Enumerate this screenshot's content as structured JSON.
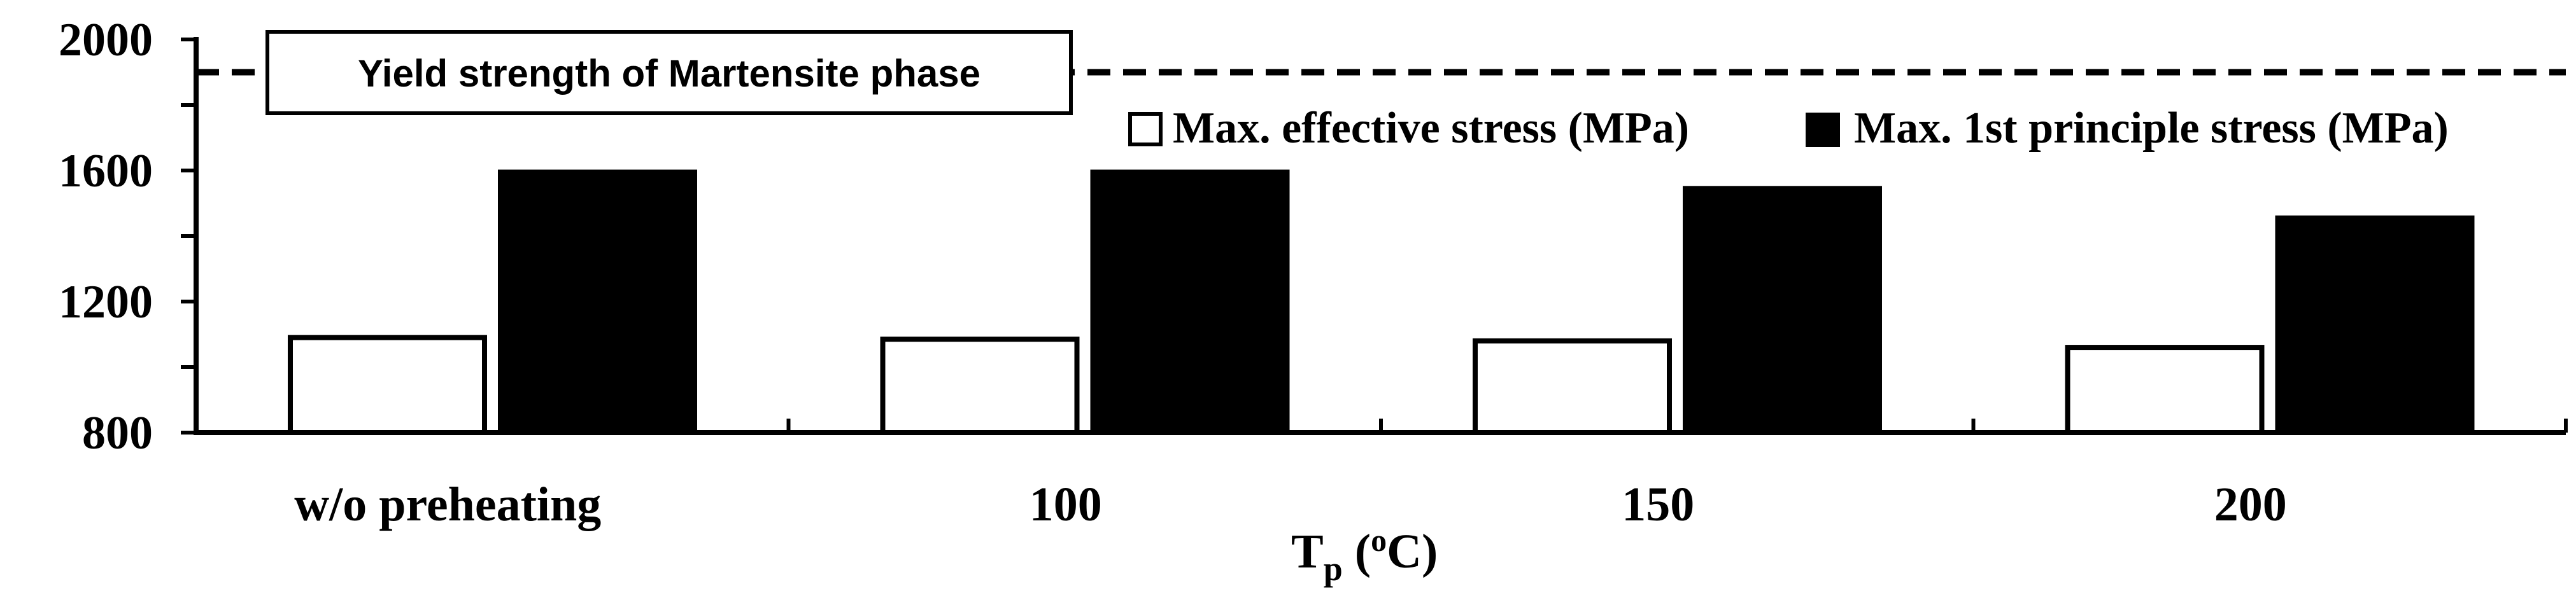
{
  "chart_data": {
    "type": "bar",
    "title": "",
    "xlabel": "T",
    "xlabel_sub": "p",
    "xlabel_unit": "(oC)",
    "xlabel_sup": "o",
    "xlabel_unit_text": "C)",
    "xlabel_open": "(",
    "ylabel": "",
    "ylim": [
      800,
      2000
    ],
    "yticks": [
      800,
      1200,
      1600,
      2000
    ],
    "ytick_labels": [
      "800",
      "1200",
      "1600",
      "2000"
    ],
    "categories": [
      "w/o preheating",
      "100",
      "150",
      "200"
    ],
    "series": [
      {
        "name": "Max. effective stress (MPa)",
        "fill": "#ffffff",
        "values": [
          1090,
          1085,
          1080,
          1060
        ]
      },
      {
        "name": "Max. 1st principle stress (MPa)",
        "fill": "#000000",
        "values": [
          1595,
          1595,
          1545,
          1455
        ]
      }
    ],
    "reference_line": {
      "label": "Yield strength of Martensite phase",
      "value": 1900,
      "style": "dashed"
    },
    "legend_position": "top-right",
    "grid": false
  }
}
